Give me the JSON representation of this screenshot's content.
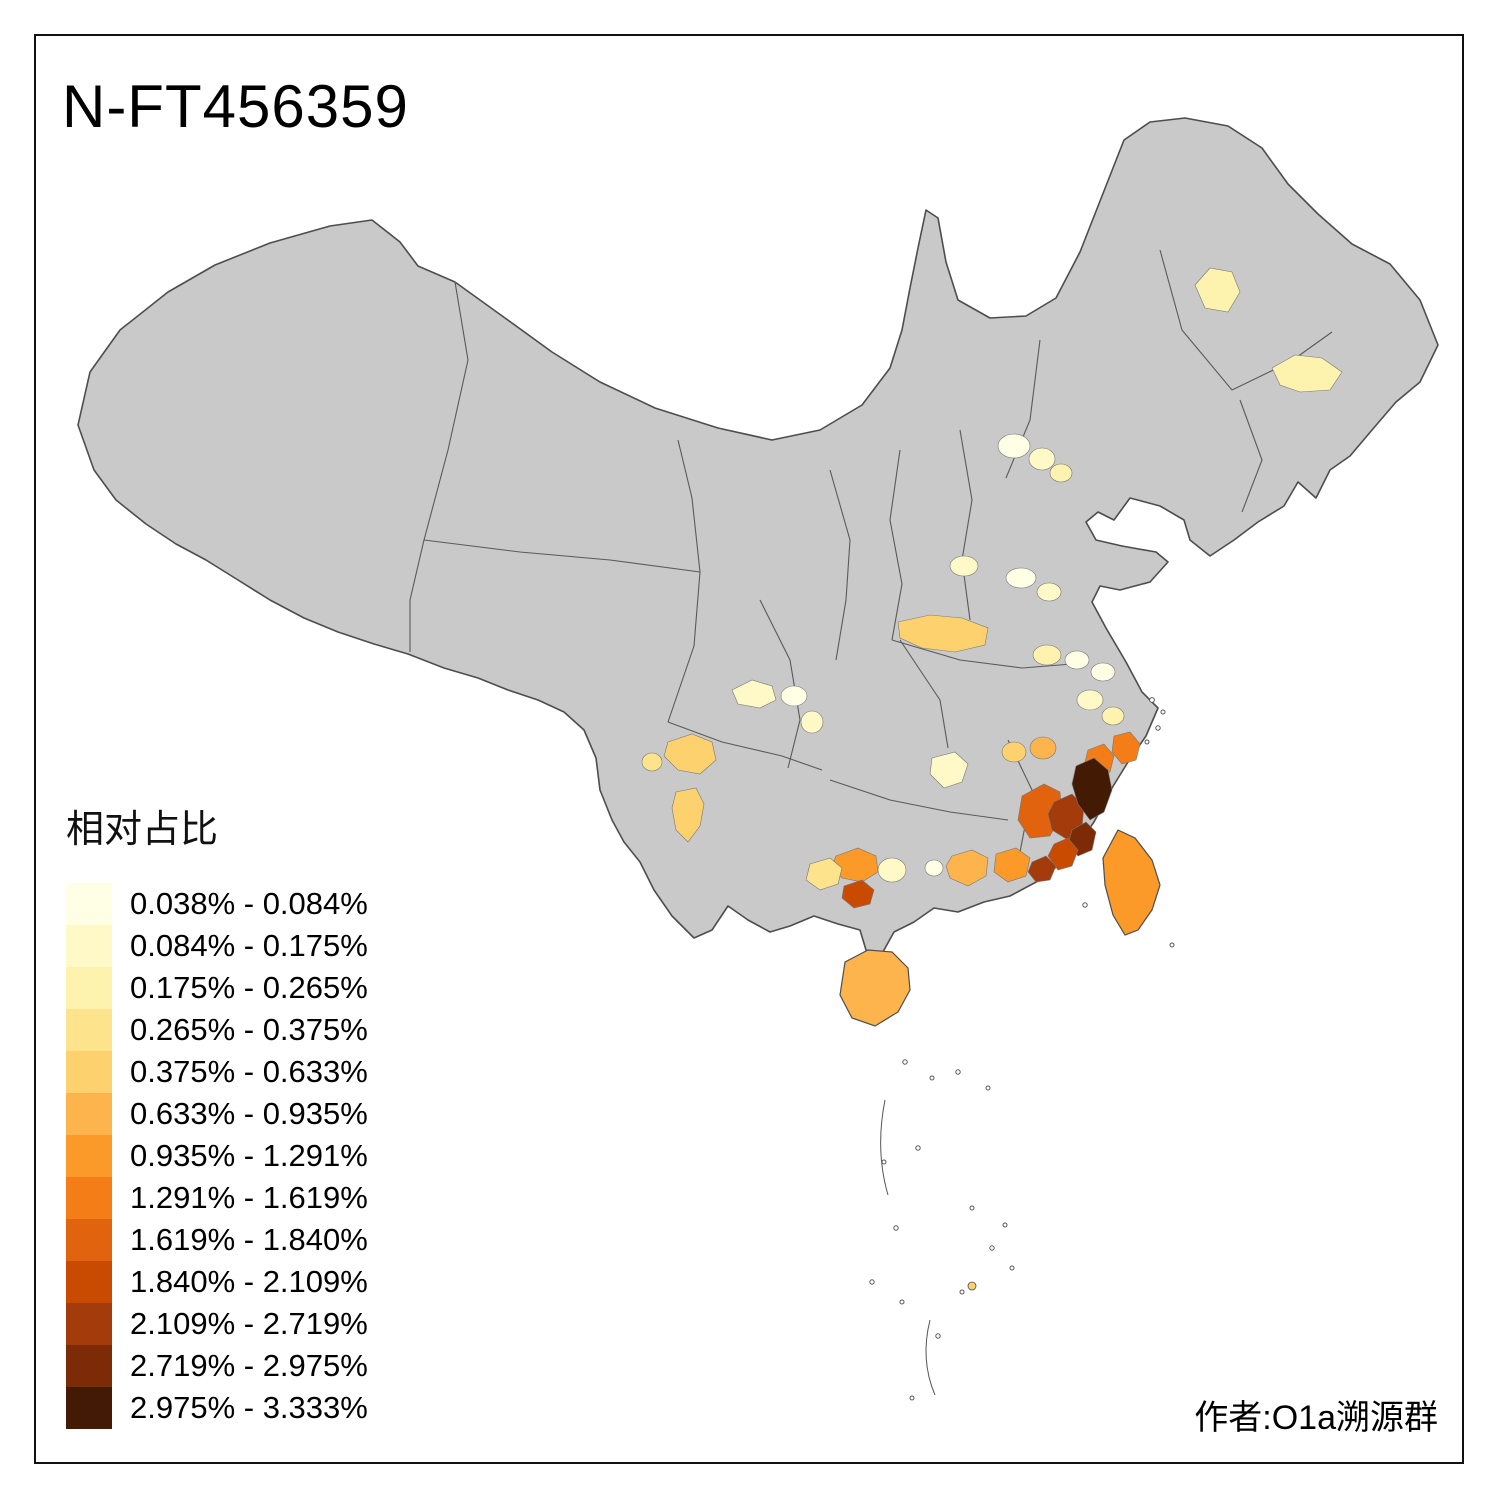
{
  "title": "N-FT456359",
  "attribution": "作者:O1a溯源群",
  "legend": {
    "title": "相对占比",
    "items": [
      {
        "label": "0.038% - 0.084%",
        "color": "#FFFFE5"
      },
      {
        "label": "0.084% - 0.175%",
        "color": "#FFF9C8"
      },
      {
        "label": "0.175% - 0.265%",
        "color": "#FEF3AE"
      },
      {
        "label": "0.265% - 0.375%",
        "color": "#FDE38C"
      },
      {
        "label": "0.375% - 0.633%",
        "color": "#FDD26E"
      },
      {
        "label": "0.633% - 0.935%",
        "color": "#FDB44C"
      },
      {
        "label": "0.935% - 1.291%",
        "color": "#FB9929"
      },
      {
        "label": "1.291% - 1.619%",
        "color": "#F57D17"
      },
      {
        "label": "1.619% - 1.840%",
        "color": "#E2630D"
      },
      {
        "label": "1.840% - 2.109%",
        "color": "#C94B02"
      },
      {
        "label": "2.109% - 2.719%",
        "color": "#A33B0B"
      },
      {
        "label": "2.719% - 2.975%",
        "color": "#7D2B06"
      },
      {
        "label": "2.975% - 3.333%",
        "color": "#431A03"
      }
    ]
  },
  "map": {
    "land_color": "#C9C9C9",
    "border_color": "#4D4D4D",
    "background": "#FFFFFF",
    "regions": {
      "r01": {
        "name": "inner-mongolia-ne",
        "color": "#FEF3AE"
      },
      "r02": {
        "name": "jilin-east",
        "color": "#FEF3AE"
      },
      "r03": {
        "name": "beijing-nw",
        "color": "#FFFFE5"
      },
      "r04": {
        "name": "beijing-n",
        "color": "#FFF9C8"
      },
      "r05": {
        "name": "tianjin-area",
        "color": "#FEF3AE"
      },
      "r06": {
        "name": "hebei-s",
        "color": "#FFF9C8"
      },
      "r07": {
        "name": "shanxi-se",
        "color": "#FFFFE5"
      },
      "r08": {
        "name": "shandong-w",
        "color": "#FFF9C8"
      },
      "r09": {
        "name": "gansu-shaanxi-band",
        "color": "#FDD26E"
      },
      "r10": {
        "name": "henan-c",
        "color": "#FEF3AE"
      },
      "r11": {
        "name": "henan-e",
        "color": "#FFFFE5"
      },
      "r12": {
        "name": "jiangsu-n",
        "color": "#FFFFE5"
      },
      "r13": {
        "name": "anhui-c",
        "color": "#FFF9C8"
      },
      "r14": {
        "name": "jiangsu-s",
        "color": "#FEF3AE"
      },
      "r15": {
        "name": "sichuan-ne",
        "color": "#FFF9C8"
      },
      "r16": {
        "name": "chongqing-w",
        "color": "#FFF9C8"
      },
      "r17": {
        "name": "liangshan-panzhihua",
        "color": "#FDD26E"
      },
      "r18": {
        "name": "yunnan-ne",
        "color": "#FDE38C"
      },
      "r19": {
        "name": "yunnan-c",
        "color": "#FDD26E"
      },
      "r20": {
        "name": "guizhou-n",
        "color": "#FFFFE5"
      },
      "r21": {
        "name": "hunan-c",
        "color": "#FFF9C8"
      },
      "r22": {
        "name": "jiangxi-nw",
        "color": "#FDD26E"
      },
      "r23": {
        "name": "zhejiang-w",
        "color": "#FDB44C"
      },
      "r24": {
        "name": "wenzhou",
        "color": "#F57D17"
      },
      "r25": {
        "name": "fujian-ne-coast",
        "color": "#F57D17"
      },
      "r26": {
        "name": "fujian-w",
        "color": "#E2630D"
      },
      "r27": {
        "name": "fujian-coast-core",
        "color": "#431A03"
      },
      "r28": {
        "name": "fujian-c",
        "color": "#A33B0B"
      },
      "r29": {
        "name": "fujian-s",
        "color": "#7D2B06"
      },
      "r30": {
        "name": "fujian-coast-s",
        "color": "#C94B02"
      },
      "r31": {
        "name": "chaoshan",
        "color": "#A33B0B"
      },
      "r32": {
        "name": "guangdong-c",
        "color": "#FDB44C"
      },
      "r33": {
        "name": "guangdong-e",
        "color": "#FB9929"
      },
      "r34": {
        "name": "guangdong-w",
        "color": "#FFFFE5"
      },
      "r35": {
        "name": "guangxi-e",
        "color": "#FFF9C8"
      },
      "r36": {
        "name": "guangxi-c",
        "color": "#FB9929"
      },
      "r37": {
        "name": "guangxi-w",
        "color": "#FDE38C"
      },
      "r38": {
        "name": "guangxi-s",
        "color": "#C94B02"
      },
      "r39": {
        "name": "hainan",
        "color": "#FDB44C"
      },
      "r40": {
        "name": "taiwan",
        "color": "#FB9929"
      },
      "r41": {
        "name": "south-sea-island",
        "color": "#FDD26E"
      }
    }
  }
}
